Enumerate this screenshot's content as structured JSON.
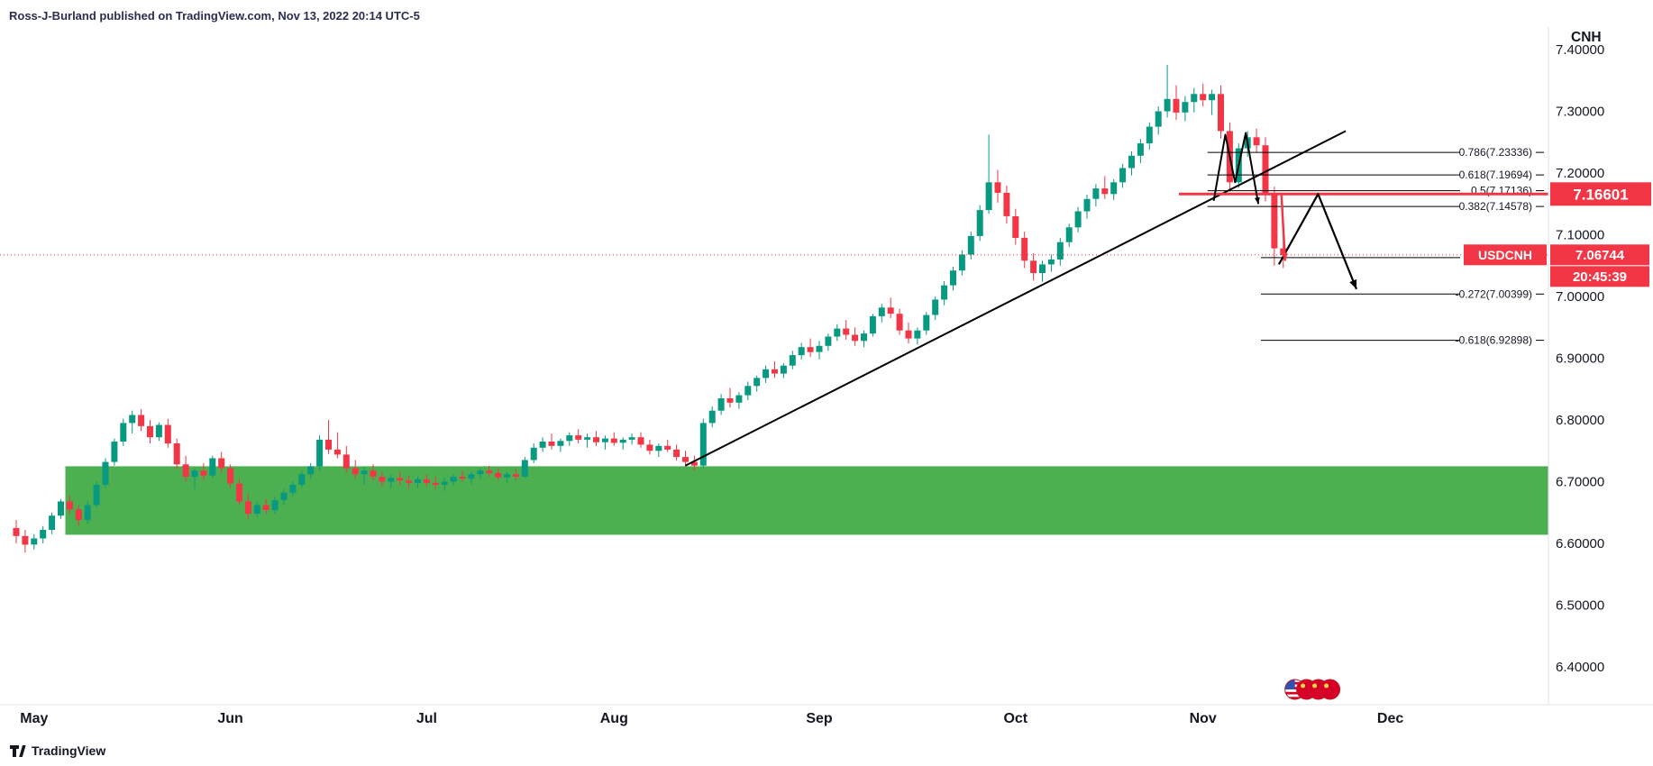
{
  "meta": {
    "attribution": "Ross-J-Burland published on TradingView.com, Nov 13, 2022 20:14 UTC-5",
    "footer_brand": "TradingView"
  },
  "axis": {
    "currency_label": "CNH",
    "price_ticks": [
      "7.40000",
      "7.30000",
      "7.20000",
      "7.10000",
      "7.00000",
      "6.90000",
      "6.80000",
      "6.70000",
      "6.60000",
      "6.50000",
      "6.40000"
    ],
    "month_ticks": [
      {
        "label": "May",
        "index": 2
      },
      {
        "label": "Jun",
        "index": 24
      },
      {
        "label": "Jul",
        "index": 46
      },
      {
        "label": "Aug",
        "index": 67
      },
      {
        "label": "Sep",
        "index": 90
      },
      {
        "label": "Oct",
        "index": 112
      },
      {
        "label": "Nov",
        "index": 133
      },
      {
        "label": "Dec",
        "index": 154
      }
    ]
  },
  "badges": {
    "drawing_price": {
      "text": "7.16601",
      "price": 7.16601,
      "color": "#f23645"
    },
    "symbol": {
      "text": "USDCNH",
      "color": "#f23645"
    },
    "last_price": {
      "text": "7.06744",
      "price": 7.06744,
      "color": "#f23645"
    },
    "countdown": {
      "text": "20:45:39",
      "color": "#f23645"
    }
  },
  "chart_data": {
    "type": "candlestick",
    "symbol": "USDCNH",
    "x_months": [
      "May",
      "Jun",
      "Jul",
      "Aug",
      "Sep",
      "Oct",
      "Nov",
      "Dec"
    ],
    "y_range": [
      6.35,
      7.43
    ],
    "up_color": "#089981",
    "down_color": "#f23645",
    "candles": [
      [
        6.625,
        6.638,
        6.6,
        6.612
      ],
      [
        6.612,
        6.622,
        6.585,
        6.598
      ],
      [
        6.598,
        6.615,
        6.59,
        6.608
      ],
      [
        6.608,
        6.628,
        6.6,
        6.622
      ],
      [
        6.622,
        6.65,
        6.615,
        6.645
      ],
      [
        6.645,
        6.672,
        6.64,
        6.668
      ],
      [
        6.668,
        6.678,
        6.648,
        6.655
      ],
      [
        6.655,
        6.662,
        6.628,
        6.638
      ],
      [
        6.638,
        6.668,
        6.632,
        6.662
      ],
      [
        6.662,
        6.7,
        6.658,
        6.695
      ],
      [
        6.695,
        6.738,
        6.69,
        6.732
      ],
      [
        6.732,
        6.77,
        6.726,
        6.765
      ],
      [
        6.765,
        6.802,
        6.758,
        6.795
      ],
      [
        6.795,
        6.815,
        6.778,
        6.808
      ],
      [
        6.808,
        6.818,
        6.782,
        6.79
      ],
      [
        6.79,
        6.8,
        6.762,
        6.772
      ],
      [
        6.772,
        6.796,
        6.766,
        6.792
      ],
      [
        6.792,
        6.802,
        6.755,
        6.762
      ],
      [
        6.762,
        6.77,
        6.72,
        6.728
      ],
      [
        6.728,
        6.742,
        6.7,
        6.708
      ],
      [
        6.708,
        6.722,
        6.688,
        6.718
      ],
      [
        6.718,
        6.73,
        6.702,
        6.71
      ],
      [
        6.71,
        6.742,
        6.706,
        6.738
      ],
      [
        6.738,
        6.748,
        6.714,
        6.722
      ],
      [
        6.722,
        6.728,
        6.69,
        6.697
      ],
      [
        6.697,
        6.705,
        6.662,
        6.668
      ],
      [
        6.668,
        6.68,
        6.64,
        6.648
      ],
      [
        6.648,
        6.668,
        6.642,
        6.662
      ],
      [
        6.662,
        6.672,
        6.648,
        6.654
      ],
      [
        6.654,
        6.675,
        6.648,
        6.67
      ],
      [
        6.67,
        6.688,
        6.662,
        6.682
      ],
      [
        6.682,
        6.7,
        6.676,
        6.695
      ],
      [
        6.695,
        6.718,
        6.69,
        6.712
      ],
      [
        6.712,
        6.73,
        6.705,
        6.725
      ],
      [
        6.725,
        6.775,
        6.718,
        6.768
      ],
      [
        6.768,
        6.8,
        6.745,
        6.752
      ],
      [
        6.752,
        6.78,
        6.738,
        6.744
      ],
      [
        6.744,
        6.758,
        6.714,
        6.722
      ],
      [
        6.722,
        6.735,
        6.705,
        6.712
      ],
      [
        6.712,
        6.724,
        6.695,
        6.718
      ],
      [
        6.718,
        6.728,
        6.702,
        6.708
      ],
      [
        6.708,
        6.716,
        6.692,
        6.7
      ],
      [
        6.7,
        6.712,
        6.69,
        6.706
      ],
      [
        6.706,
        6.716,
        6.694,
        6.702
      ],
      [
        6.702,
        6.71,
        6.688,
        6.698
      ],
      [
        6.698,
        6.708,
        6.69,
        6.704
      ],
      [
        6.704,
        6.712,
        6.692,
        6.698
      ],
      [
        6.698,
        6.708,
        6.688,
        6.695
      ],
      [
        6.695,
        6.706,
        6.685,
        6.7
      ],
      [
        6.7,
        6.712,
        6.694,
        6.708
      ],
      [
        6.708,
        6.718,
        6.7,
        6.705
      ],
      [
        6.705,
        6.716,
        6.696,
        6.712
      ],
      [
        6.712,
        6.722,
        6.704,
        6.718
      ],
      [
        6.718,
        6.726,
        6.708,
        6.714
      ],
      [
        6.714,
        6.722,
        6.702,
        6.707
      ],
      [
        6.707,
        6.716,
        6.698,
        6.712
      ],
      [
        6.712,
        6.72,
        6.702,
        6.708
      ],
      [
        6.708,
        6.74,
        6.705,
        6.735
      ],
      [
        6.735,
        6.762,
        6.73,
        6.755
      ],
      [
        6.755,
        6.772,
        6.748,
        6.765
      ],
      [
        6.765,
        6.778,
        6.752,
        6.758
      ],
      [
        6.758,
        6.77,
        6.748,
        6.766
      ],
      [
        6.766,
        6.78,
        6.758,
        6.775
      ],
      [
        6.775,
        6.785,
        6.762,
        6.768
      ],
      [
        6.768,
        6.778,
        6.755,
        6.772
      ],
      [
        6.772,
        6.782,
        6.758,
        6.764
      ],
      [
        6.764,
        6.775,
        6.752,
        6.77
      ],
      [
        6.77,
        6.78,
        6.758,
        6.763
      ],
      [
        6.763,
        6.772,
        6.752,
        6.768
      ],
      [
        6.768,
        6.778,
        6.76,
        6.772
      ],
      [
        6.772,
        6.78,
        6.755,
        6.76
      ],
      [
        6.76,
        6.768,
        6.744,
        6.75
      ],
      [
        6.75,
        6.762,
        6.74,
        6.758
      ],
      [
        6.758,
        6.768,
        6.748,
        6.752
      ],
      [
        6.752,
        6.76,
        6.734,
        6.74
      ],
      [
        6.74,
        6.75,
        6.725,
        6.732
      ],
      [
        6.732,
        6.742,
        6.718,
        6.726
      ],
      [
        6.726,
        6.802,
        6.722,
        6.795
      ],
      [
        6.795,
        6.822,
        6.788,
        6.815
      ],
      [
        6.815,
        6.842,
        6.808,
        6.835
      ],
      [
        6.835,
        6.852,
        6.82,
        6.828
      ],
      [
        6.828,
        6.845,
        6.818,
        6.84
      ],
      [
        6.84,
        6.862,
        6.832,
        6.855
      ],
      [
        6.855,
        6.872,
        6.846,
        6.868
      ],
      [
        6.868,
        6.888,
        6.86,
        6.882
      ],
      [
        6.882,
        6.895,
        6.868,
        6.875
      ],
      [
        6.875,
        6.892,
        6.868,
        6.888
      ],
      [
        6.888,
        6.912,
        6.882,
        6.905
      ],
      [
        6.905,
        6.925,
        6.898,
        6.918
      ],
      [
        6.918,
        6.932,
        6.902,
        6.91
      ],
      [
        6.91,
        6.928,
        6.898,
        6.92
      ],
      [
        6.92,
        6.94,
        6.912,
        6.935
      ],
      [
        6.935,
        6.955,
        6.928,
        6.948
      ],
      [
        6.948,
        6.962,
        6.93,
        6.938
      ],
      [
        6.938,
        6.95,
        6.92,
        6.928
      ],
      [
        6.928,
        6.945,
        6.918,
        6.94
      ],
      [
        6.94,
        6.972,
        6.935,
        6.968
      ],
      [
        6.968,
        6.988,
        6.958,
        6.982
      ],
      [
        6.982,
        6.998,
        6.965,
        6.972
      ],
      [
        6.972,
        6.98,
        6.938,
        6.945
      ],
      [
        6.945,
        6.958,
        6.924,
        6.932
      ],
      [
        6.932,
        6.95,
        6.922,
        6.945
      ],
      [
        6.945,
        6.975,
        6.938,
        6.97
      ],
      [
        6.97,
        7.0,
        6.962,
        6.995
      ],
      [
        6.995,
        7.025,
        6.986,
        7.018
      ],
      [
        7.018,
        7.048,
        7.01,
        7.042
      ],
      [
        7.042,
        7.075,
        7.034,
        7.068
      ],
      [
        7.068,
        7.105,
        7.06,
        7.098
      ],
      [
        7.098,
        7.148,
        7.09,
        7.14
      ],
      [
        7.14,
        7.262,
        7.134,
        7.185
      ],
      [
        7.185,
        7.205,
        7.152,
        7.168
      ],
      [
        7.168,
        7.18,
        7.118,
        7.13
      ],
      [
        7.13,
        7.142,
        7.084,
        7.095
      ],
      [
        7.095,
        7.105,
        7.046,
        7.058
      ],
      [
        7.058,
        7.07,
        7.026,
        7.038
      ],
      [
        7.038,
        7.058,
        7.024,
        7.052
      ],
      [
        7.052,
        7.068,
        7.04,
        7.06
      ],
      [
        7.06,
        7.095,
        7.05,
        7.088
      ],
      [
        7.088,
        7.118,
        7.08,
        7.112
      ],
      [
        7.112,
        7.145,
        7.104,
        7.138
      ],
      [
        7.138,
        7.165,
        7.126,
        7.158
      ],
      [
        7.158,
        7.182,
        7.146,
        7.175
      ],
      [
        7.175,
        7.195,
        7.158,
        7.166
      ],
      [
        7.166,
        7.19,
        7.156,
        7.185
      ],
      [
        7.185,
        7.215,
        7.176,
        7.208
      ],
      [
        7.208,
        7.235,
        7.196,
        7.228
      ],
      [
        7.228,
        7.255,
        7.216,
        7.248
      ],
      [
        7.248,
        7.282,
        7.238,
        7.275
      ],
      [
        7.275,
        7.308,
        7.262,
        7.3
      ],
      [
        7.3,
        7.375,
        7.29,
        7.32
      ],
      [
        7.32,
        7.342,
        7.286,
        7.298
      ],
      [
        7.298,
        7.325,
        7.284,
        7.315
      ],
      [
        7.315,
        7.338,
        7.298,
        7.328
      ],
      [
        7.328,
        7.345,
        7.308,
        7.318
      ],
      [
        7.318,
        7.335,
        7.294,
        7.328
      ],
      [
        7.328,
        7.342,
        7.256,
        7.268
      ],
      [
        7.268,
        7.282,
        7.17,
        7.185
      ],
      [
        7.185,
        7.248,
        7.176,
        7.24
      ],
      [
        7.24,
        7.268,
        7.226,
        7.258
      ],
      [
        7.258,
        7.272,
        7.234,
        7.245
      ],
      [
        7.245,
        7.258,
        7.154,
        7.165
      ],
      [
        7.165,
        7.178,
        7.05,
        7.078
      ],
      [
        7.078,
        7.095,
        7.046,
        7.067
      ]
    ],
    "overlays": {
      "support_zone": {
        "start_index": 5.5,
        "price_top": 6.725,
        "price_bottom": 6.614,
        "color": "#4caf50"
      },
      "trendline": {
        "from": {
          "index": 75,
          "price": 6.726
        },
        "to": {
          "index": 149,
          "price": 7.268
        },
        "color": "#000000"
      },
      "fib_levels": [
        {
          "ratio": "0.786",
          "price": 7.23336,
          "label": "0.786(7.23336)",
          "start_index": 133.5
        },
        {
          "ratio": "0.618",
          "price": 7.19694,
          "label": "0.618(7.19694)",
          "start_index": 133.5
        },
        {
          "ratio": "0.5",
          "price": 7.17136,
          "label": "0.5(7.17136)",
          "start_index": 133.5
        },
        {
          "ratio": "0.382",
          "price": 7.14578,
          "label": "0.382(7.14578)",
          "start_index": 133.5
        },
        {
          "ratio": "0",
          "price": 7.06296,
          "label": "",
          "start_index": 139.5
        },
        {
          "ratio": "-0.272",
          "price": 7.00399,
          "label": "-0.272(7.00399)",
          "start_index": 139.5
        },
        {
          "ratio": "-0.618",
          "price": 6.92898,
          "label": "-0.618(6.92898)",
          "start_index": 139.5
        }
      ],
      "horizontal_line": {
        "price": 7.16601,
        "color": "#f23645",
        "start_index": 130.3
      },
      "last_price_line": {
        "price": 7.06744,
        "color": "#f23645",
        "style": "dotted"
      },
      "rejection_zigzag": {
        "points": [
          [
            134.2,
            7.155
          ],
          [
            135.5,
            7.262
          ],
          [
            136.6,
            7.185
          ],
          [
            137.8,
            7.265
          ],
          [
            139.2,
            7.15
          ]
        ],
        "color": "#000000"
      },
      "projection": {
        "points": [
          [
            141.5,
            7.052
          ],
          [
            145.9,
            7.166
          ],
          [
            150.2,
            7.012
          ]
        ],
        "color": "#000000"
      },
      "red_drop_arrow": {
        "from": [
          141.8,
          7.164
        ],
        "to": [
          142.2,
          7.058
        ],
        "color": "#f23645"
      }
    },
    "flags": {
      "types": [
        "us",
        "cn",
        "cn",
        "cn"
      ],
      "start_index": 143.3,
      "spacing_index": 1.31,
      "y_price": 6.3635
    }
  }
}
